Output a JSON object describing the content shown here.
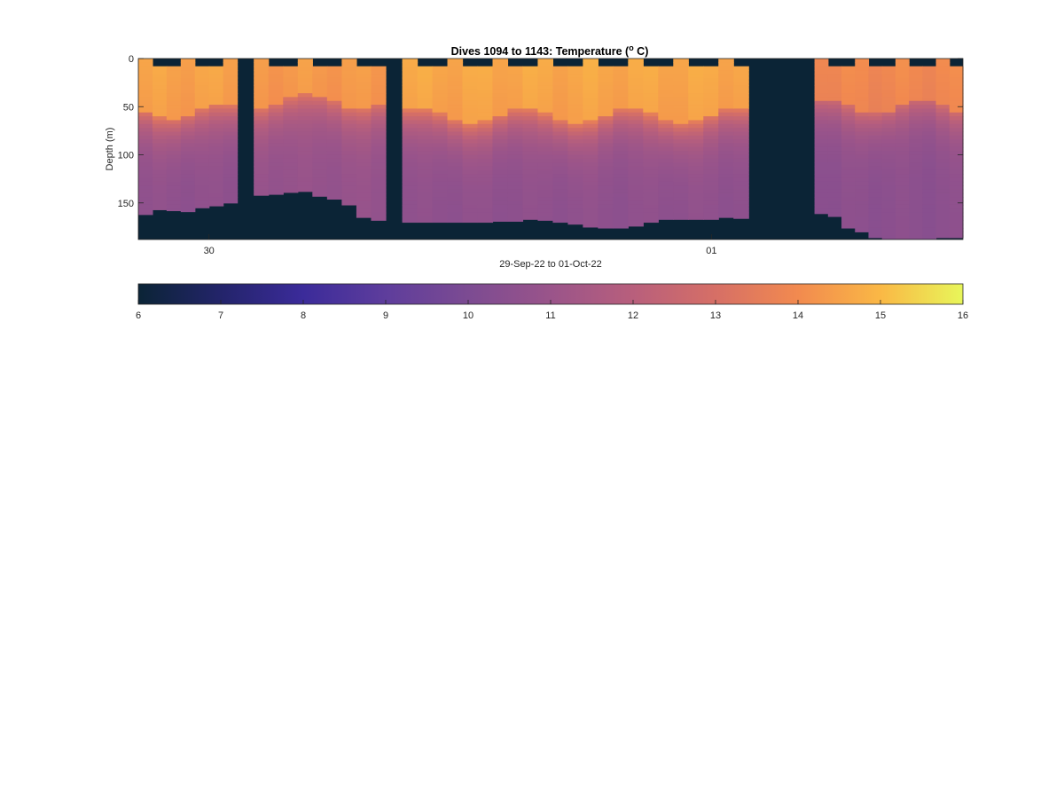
{
  "chart_data": {
    "type": "heatmap",
    "title": {
      "main": "Dives 1094 to 1143: Temperature (",
      "superscript": "o",
      "unit_end": " C)"
    },
    "ylabel": "Depth (m)",
    "xlabel": "29-Sep-22 to 01-Oct-22",
    "y_ticks": [
      "0",
      "50",
      "100",
      "150"
    ],
    "y_tick_values": [
      0,
      50,
      100,
      150
    ],
    "ylim": [
      0,
      188
    ],
    "y_reversed": true,
    "x_ticks": [
      "30",
      "01"
    ],
    "x_tick_positions": [
      0.0857,
      0.695
    ],
    "colorbar": {
      "ticks": [
        "6",
        "7",
        "8",
        "9",
        "10",
        "11",
        "12",
        "13",
        "14",
        "15",
        "16"
      ],
      "range": [
        6,
        16
      ],
      "colormap": "thermal",
      "stops": [
        "#0b2436",
        "#23246a",
        "#3b2b9a",
        "#5e3d9c",
        "#7c4b92",
        "#9a548a",
        "#b85f7c",
        "#d66f66",
        "#f28a4f",
        "#fab845",
        "#e8f65a"
      ]
    },
    "background_color": "#0b2436",
    "segments": [
      {
        "start": 0.0,
        "end": 0.12,
        "surface": 14.6,
        "mix_depth": 55,
        "deep": 10.6,
        "bottom_depth": [
          162,
          157,
          158,
          159,
          155,
          153,
          150
        ]
      },
      {
        "start": 0.14,
        "end": 0.3,
        "surface": 14.4,
        "mix_depth": 45,
        "deep": 10.8,
        "bottom_depth": [
          142,
          141,
          139,
          138,
          143,
          146,
          152,
          165,
          168
        ]
      },
      {
        "start": 0.32,
        "end": 0.74,
        "surface": 14.7,
        "mix_depth": 60,
        "deep": 10.6,
        "bottom_depth": [
          170,
          170,
          170,
          170,
          170,
          170,
          169,
          169,
          167,
          168,
          170,
          172,
          175,
          176,
          176,
          174,
          170,
          167,
          167,
          167,
          167,
          165,
          166
        ]
      },
      {
        "start": 0.82,
        "end": 1.0,
        "surface": 14.0,
        "mix_depth": 50,
        "deep": 10.5,
        "bottom_depth": [
          161,
          164,
          176,
          180,
          186,
          187,
          187,
          187,
          187,
          186,
          186
        ]
      }
    ]
  }
}
